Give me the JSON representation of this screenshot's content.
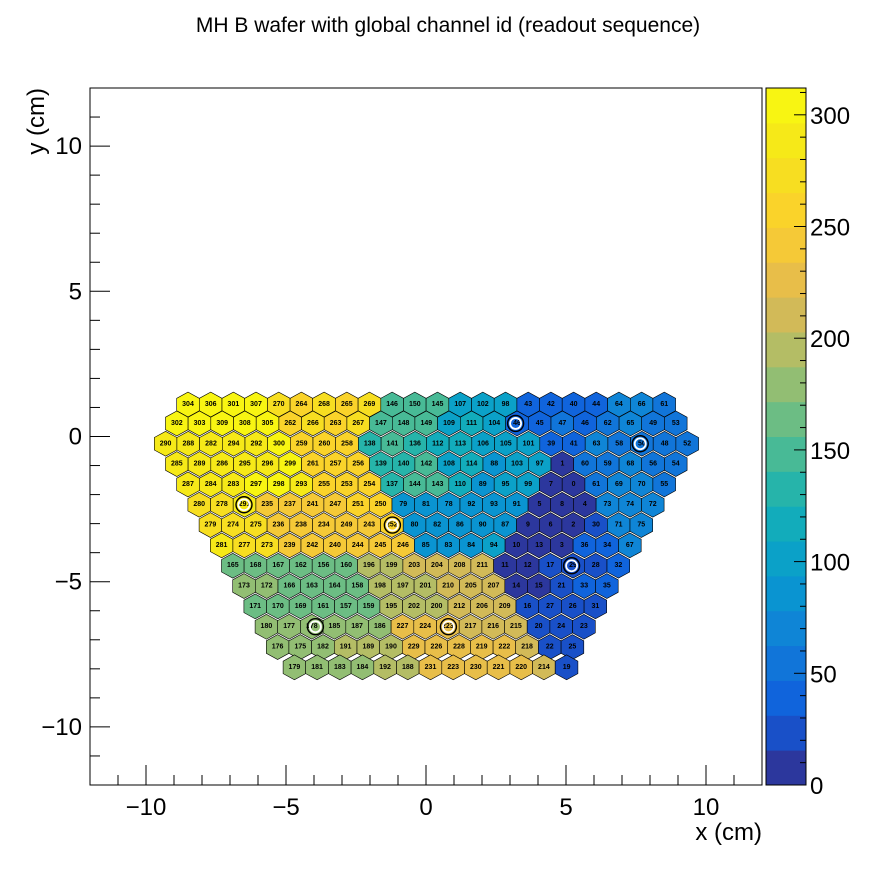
{
  "chart_data": {
    "type": "heatmap",
    "title": "MH B wafer with global channel id (readout sequence)",
    "xlabel": "x (cm)",
    "ylabel": "y (cm)",
    "xlim": [
      -12,
      12
    ],
    "ylim": [
      -12,
      12
    ],
    "zlim": [
      0,
      312
    ],
    "x_ticks": [
      -10,
      -5,
      0,
      5,
      10
    ],
    "y_ticks": [
      -10,
      -5,
      0,
      5,
      10
    ],
    "x_tick_labels": [
      "−10",
      "−5",
      "0",
      "5",
      "10"
    ],
    "y_tick_labels": [
      "−10",
      "−5",
      "0",
      "5",
      "10"
    ],
    "colorbar_ticks": [
      0,
      50,
      100,
      150,
      200,
      250,
      300
    ],
    "palette": "ROOT kParula",
    "cell_pitch_cm": 0.81,
    "rows": [
      {
        "y": 1.1,
        "x0": -8.5,
        "ids": [
          304,
          306,
          301,
          307,
          270,
          264,
          268,
          265,
          269,
          146,
          150,
          145,
          107,
          102,
          98,
          43,
          42,
          40,
          44,
          64,
          66,
          61
        ]
      },
      {
        "y": 0.45,
        "x0": -8.9,
        "ids": [
          302,
          303,
          309,
          308,
          305,
          262,
          266,
          263,
          267,
          147,
          148,
          149,
          109,
          111,
          104,
          46,
          45,
          47,
          46,
          62,
          65,
          49,
          53
        ]
      },
      {
        "y": -0.25,
        "x0": -9.3,
        "ids": [
          290,
          288,
          282,
          294,
          292,
          300,
          259,
          260,
          258,
          138,
          141,
          136,
          112,
          113,
          106,
          105,
          101,
          39,
          41,
          63,
          58,
          50,
          48,
          52
        ]
      },
      {
        "y": -0.95,
        "x0": -8.9,
        "ids": [
          285,
          289,
          286,
          295,
          296,
          299,
          261,
          257,
          256,
          139,
          140,
          142,
          108,
          114,
          88,
          103,
          97,
          1,
          60,
          59,
          68,
          56,
          54
        ]
      },
      {
        "y": -1.65,
        "x0": -8.5,
        "ids": [
          287,
          284,
          283,
          297,
          298,
          293,
          255,
          253,
          254,
          137,
          144,
          143,
          110,
          89,
          95,
          99,
          7,
          0,
          61,
          69,
          70,
          55
        ]
      },
      {
        "y": -2.35,
        "x0": -8.1,
        "ids": [
          280,
          278,
          291,
          235,
          237,
          241,
          247,
          251,
          250,
          79,
          81,
          78,
          92,
          93,
          91,
          5,
          8,
          4,
          73,
          74,
          72
        ]
      },
      {
        "y": -3.05,
        "x0": -7.7,
        "ids": [
          279,
          274,
          275,
          236,
          238,
          234,
          249,
          243,
          252,
          80,
          82,
          86,
          90,
          87,
          9,
          6,
          2,
          30,
          71,
          75
        ]
      },
      {
        "y": -3.75,
        "x0": -7.3,
        "ids": [
          281,
          277,
          273,
          239,
          242,
          240,
          244,
          245,
          246,
          85,
          83,
          84,
          94,
          10,
          13,
          3,
          36,
          34,
          67
        ]
      },
      {
        "y": -4.45,
        "x0": -6.9,
        "ids": [
          165,
          168,
          167,
          162,
          156,
          160,
          196,
          199,
          203,
          204,
          208,
          211,
          11,
          12,
          17,
          29,
          28,
          32
        ]
      },
      {
        "y": -5.15,
        "x0": -6.5,
        "ids": [
          173,
          172,
          166,
          163,
          164,
          158,
          198,
          197,
          201,
          210,
          205,
          207,
          14,
          15,
          21,
          33,
          35
        ]
      },
      {
        "y": -5.85,
        "x0": -6.1,
        "ids": [
          171,
          170,
          169,
          161,
          157,
          159,
          195,
          202,
          200,
          212,
          206,
          209,
          16,
          27,
          26,
          31
        ]
      },
      {
        "y": -6.55,
        "x0": -5.7,
        "ids": [
          180,
          177,
          178,
          185,
          187,
          186,
          227,
          224,
          223,
          217,
          216,
          215,
          20,
          24,
          23
        ]
      },
      {
        "y": -7.25,
        "x0": -5.3,
        "ids": [
          176,
          175,
          182,
          191,
          189,
          190,
          229,
          226,
          228,
          219,
          222,
          218,
          22,
          25
        ]
      },
      {
        "y": -7.95,
        "x0": -4.7,
        "ids": [
          179,
          181,
          183,
          184,
          192,
          188,
          231,
          223,
          230,
          221,
          220,
          214,
          19
        ]
      }
    ],
    "circle_markers": [
      {
        "x": 3.2,
        "y": 0.45
      },
      {
        "x": 7.65,
        "y": -0.25
      },
      {
        "x": -6.5,
        "y": -2.35
      },
      {
        "x": -1.2,
        "y": -3.05
      },
      {
        "x": 5.2,
        "y": -4.45
      },
      {
        "x": -3.95,
        "y": -6.55
      },
      {
        "x": 0.8,
        "y": -6.55
      }
    ]
  }
}
